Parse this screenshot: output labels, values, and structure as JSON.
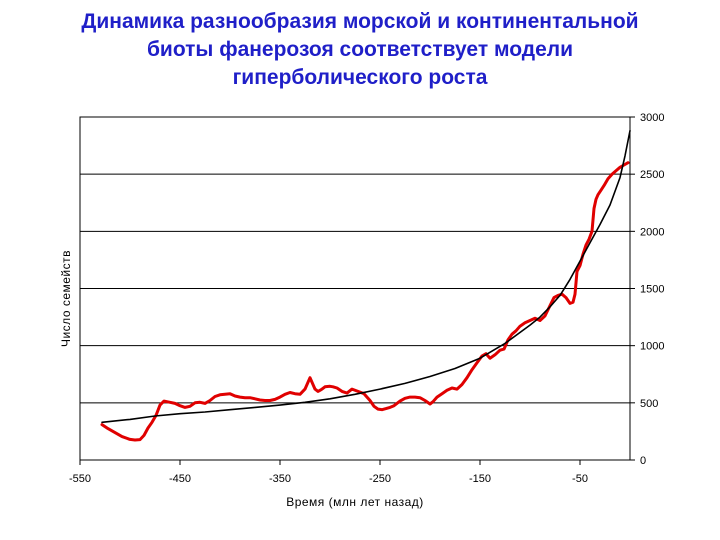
{
  "chart_data": {
    "type": "line",
    "title_lines": [
      "Динамика разнообразия морской и континентальной",
      "биоты фанерозоя соответствует модели",
      "гиперболического роста"
    ],
    "xlabel": "Время (млн лет назад)",
    "ylabel": "Число семейств",
    "xlim": [
      -550,
      0
    ],
    "ylim": [
      0,
      3000
    ],
    "x_ticks": [
      -550,
      -450,
      -350,
      -250,
      -150,
      -50
    ],
    "y_ticks": [
      0,
      500,
      1000,
      1500,
      2000,
      2500,
      3000
    ],
    "grid": "horizontal",
    "legend": "none",
    "series": [
      {
        "color": "#e00000",
        "x": [
          -528,
          -522,
          -515,
          -508,
          -500,
          -495,
          -490,
          -486,
          -482,
          -478,
          -474,
          -470,
          -466,
          -460,
          -455,
          -450,
          -445,
          -440,
          -435,
          -430,
          -425,
          -420,
          -415,
          -410,
          -405,
          -400,
          -395,
          -390,
          -385,
          -380,
          -375,
          -370,
          -365,
          -360,
          -355,
          -350,
          -345,
          -340,
          -335,
          -330,
          -325,
          -320,
          -315,
          -312,
          -310,
          -308,
          -305,
          -300,
          -297,
          -293,
          -288,
          -283,
          -278,
          -272,
          -266,
          -260,
          -256,
          -252,
          -248,
          -244,
          -240,
          -236,
          -230,
          -225,
          -220,
          -215,
          -210,
          -205,
          -200,
          -197,
          -193,
          -188,
          -183,
          -178,
          -173,
          -168,
          -163,
          -158,
          -153,
          -148,
          -144,
          -140,
          -135,
          -130,
          -126,
          -122,
          -118,
          -114,
          -110,
          -105,
          -100,
          -95,
          -90,
          -85,
          -80,
          -76,
          -72,
          -68,
          -64,
          -60,
          -57,
          -55,
          -53,
          -50,
          -47,
          -44,
          -41,
          -38,
          -36,
          -34,
          -32,
          -29,
          -26,
          -22,
          -18,
          -14,
          -10,
          -6,
          -2
        ],
        "values": [
          310,
          275,
          240,
          205,
          180,
          175,
          178,
          215,
          280,
          330,
          390,
          480,
          515,
          505,
          495,
          475,
          460,
          470,
          500,
          505,
          495,
          520,
          555,
          570,
          575,
          580,
          560,
          550,
          545,
          545,
          535,
          525,
          520,
          520,
          530,
          550,
          575,
          590,
          580,
          575,
          620,
          720,
          620,
          600,
          610,
          620,
          640,
          645,
          640,
          630,
          600,
          585,
          620,
          600,
          580,
          520,
          470,
          445,
          440,
          450,
          460,
          475,
          515,
          540,
          550,
          550,
          545,
          520,
          490,
          510,
          550,
          580,
          610,
          630,
          620,
          660,
          720,
          790,
          850,
          910,
          930,
          890,
          920,
          960,
          970,
          1050,
          1100,
          1130,
          1170,
          1200,
          1220,
          1240,
          1220,
          1260,
          1350,
          1420,
          1440,
          1450,
          1420,
          1370,
          1380,
          1450,
          1650,
          1700,
          1800,
          1880,
          1930,
          2000,
          2200,
          2280,
          2320,
          2360,
          2400,
          2460,
          2500,
          2530,
          2560,
          2580,
          2600
        ]
      },
      {
        "color": "#000000",
        "x": [
          -528,
          -500,
          -475,
          -450,
          -425,
          -400,
          -375,
          -350,
          -325,
          -300,
          -275,
          -250,
          -225,
          -200,
          -175,
          -150,
          -125,
          -100,
          -90,
          -80,
          -70,
          -60,
          -50,
          -40,
          -30,
          -20,
          -10,
          -5,
          0
        ],
        "values": [
          330,
          355,
          385,
          405,
          420,
          440,
          460,
          480,
          505,
          535,
          575,
          620,
          670,
          730,
          800,
          890,
          1020,
          1180,
          1250,
          1340,
          1440,
          1580,
          1740,
          1900,
          2060,
          2230,
          2470,
          2660,
          2880
        ]
      }
    ]
  }
}
